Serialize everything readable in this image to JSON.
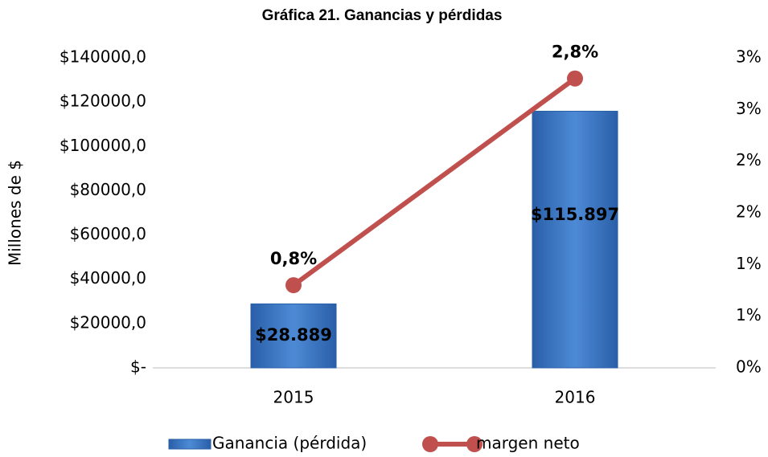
{
  "chart_data": {
    "type": "bar",
    "title": "Gráfica 21. Ganancias y pérdidas",
    "y_label": "Millones de $",
    "categories": [
      "2015",
      "2016"
    ],
    "series": [
      {
        "name": "Ganancia (pérdida)",
        "type": "bar",
        "color": "#3a78c8",
        "values": [
          28889,
          115897
        ],
        "value_labels": [
          "$28.889",
          "$115.897"
        ]
      },
      {
        "name": "margen neto",
        "type": "line",
        "axis": "y2",
        "color": "#c0504d",
        "values": [
          0.8,
          2.8
        ],
        "value_labels": [
          "0,8%",
          "2,8%"
        ]
      }
    ],
    "ylim": [
      0,
      140000
    ],
    "yticks": [
      {
        "value": 0,
        "label": "$-"
      },
      {
        "value": 20000,
        "label": "$20000,0"
      },
      {
        "value": 40000,
        "label": "$40000,0"
      },
      {
        "value": 60000,
        "label": "$60000,0"
      },
      {
        "value": 80000,
        "label": "$80000,0"
      },
      {
        "value": 100000,
        "label": "$100000,0"
      },
      {
        "value": 120000,
        "label": "$120000,0"
      },
      {
        "value": 140000,
        "label": "$140000,0"
      }
    ],
    "y2lim": [
      0,
      3
    ],
    "y2ticks": [
      {
        "value": 0,
        "label": "0%"
      },
      {
        "value": 0.5,
        "label": "1%"
      },
      {
        "value": 1,
        "label": "1%"
      },
      {
        "value": 1.5,
        "label": "2%"
      },
      {
        "value": 2,
        "label": "2%"
      },
      {
        "value": 2.5,
        "label": "3%"
      },
      {
        "value": 3,
        "label": "3%"
      }
    ],
    "legend": "bottom"
  }
}
